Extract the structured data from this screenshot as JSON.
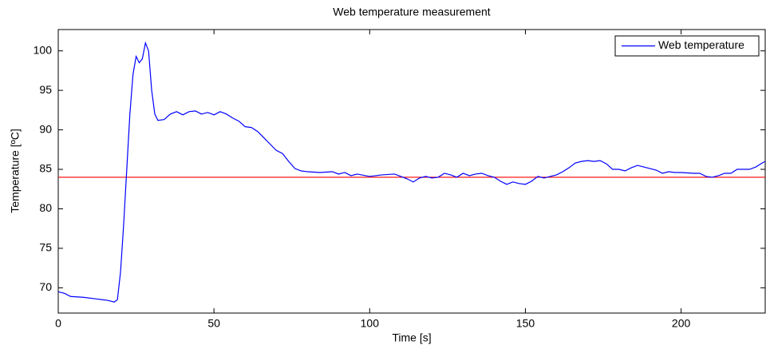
{
  "chart_data": {
    "type": "line",
    "title": "Web temperature measurement",
    "x_label": "Time [s]",
    "y_label": "Temperature [ºC]",
    "x": [
      0,
      2,
      4,
      8,
      12,
      16,
      18,
      19,
      20,
      21,
      22,
      23,
      24,
      25,
      26,
      27,
      28,
      29,
      30,
      31,
      32,
      34,
      36,
      38,
      40,
      42,
      44,
      46,
      48,
      50,
      52,
      54,
      56,
      58,
      60,
      62,
      64,
      66,
      68,
      70,
      72,
      74,
      76,
      78,
      80,
      84,
      88,
      90,
      92,
      94,
      96,
      100,
      104,
      108,
      110,
      112,
      114,
      116,
      118,
      120,
      122,
      124,
      126,
      128,
      130,
      132,
      134,
      136,
      138,
      140,
      142,
      144,
      146,
      148,
      150,
      152,
      154,
      156,
      158,
      160,
      162,
      164,
      166,
      168,
      170,
      172,
      174,
      176,
      178,
      180,
      182,
      184,
      186,
      188,
      190,
      192,
      194,
      196,
      198,
      200,
      204,
      206,
      208,
      210,
      212,
      214,
      216,
      218,
      222,
      224,
      226,
      227
    ],
    "series": [
      {
        "name": "Web temperature",
        "color": "#0000ff",
        "values": [
          69.5,
          69.3,
          68.9,
          68.8,
          68.6,
          68.4,
          68.2,
          68.5,
          72,
          78,
          85,
          92,
          97,
          99.3,
          98.5,
          99,
          101,
          100,
          95,
          92,
          91.2,
          91.3,
          92,
          92.3,
          91.9,
          92.3,
          92.4,
          92,
          92.2,
          91.9,
          92.3,
          92,
          91.5,
          91.1,
          90.4,
          90.3,
          89.8,
          89,
          88.2,
          87.4,
          87,
          86,
          85.1,
          84.8,
          84.7,
          84.6,
          84.7,
          84.4,
          84.6,
          84.2,
          84.4,
          84.1,
          84.3,
          84.4,
          84.1,
          83.8,
          83.4,
          83.9,
          84.1,
          83.9,
          84,
          84.5,
          84.3,
          84,
          84.5,
          84.2,
          84.4,
          84.5,
          84.2,
          84,
          83.5,
          83.1,
          83.4,
          83.2,
          83.1,
          83.5,
          84.1,
          83.9,
          84.1,
          84.3,
          84.7,
          85.2,
          85.8,
          86,
          86.1,
          86,
          86.1,
          85.7,
          85,
          85,
          84.8,
          85.2,
          85.5,
          85.3,
          85.1,
          84.9,
          84.5,
          84.7,
          84.6,
          84.6,
          84.5,
          84.5,
          84.1,
          84,
          84.2,
          84.5,
          84.5,
          85,
          85,
          85.3,
          85.8,
          86
        ]
      }
    ],
    "reference_line": {
      "value": 84,
      "color": "#ff0000"
    },
    "xlim": [
      0,
      227
    ],
    "ylim": [
      66.8,
      102.7
    ],
    "xticks": [
      0,
      50,
      100,
      150,
      200
    ],
    "yticks": [
      70,
      75,
      80,
      85,
      90,
      95,
      100
    ],
    "grid": false,
    "legend": "upper right"
  }
}
